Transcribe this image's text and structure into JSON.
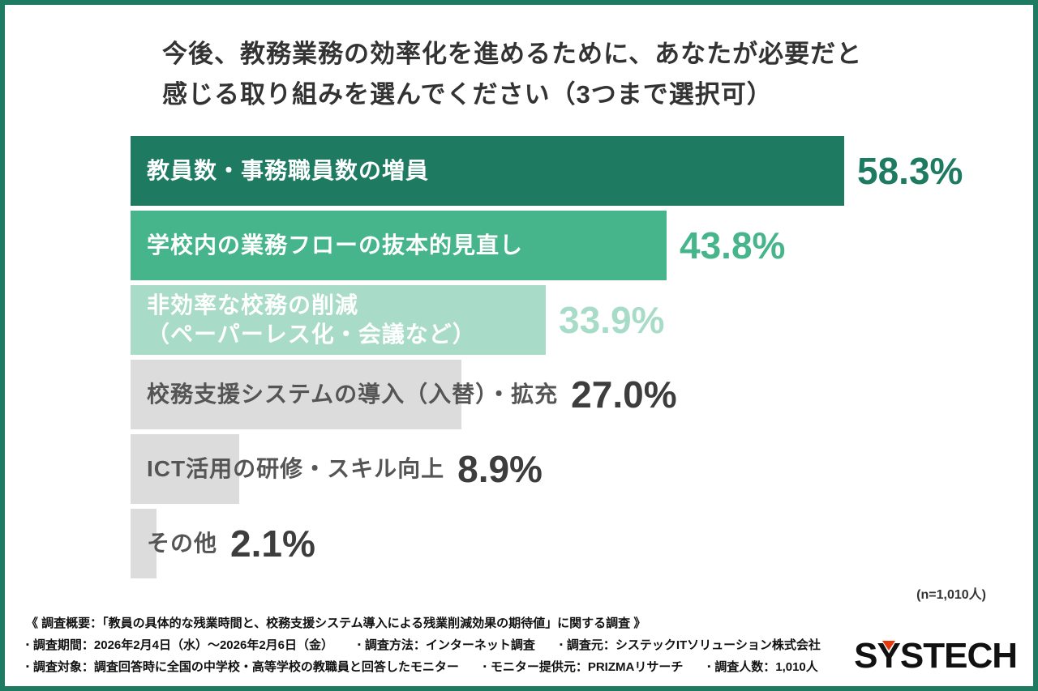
{
  "page": {
    "border_color": "#1E7B62",
    "background": "#FFFFFF"
  },
  "title": {
    "line1": "今後、教務業務の効率化を進めるために、あなたが必要だと",
    "line2": "感じる取り組みを選んでください（3つまで選択可）"
  },
  "chart_data": {
    "type": "bar",
    "orientation": "horizontal",
    "unit": "%",
    "max_value": 58.3,
    "categories": [
      "教員数・事務職員数の増員",
      "学校内の業務フローの抜本的見直し",
      "非効率な校務の削減（ペーパーレス化・会議など）",
      "校務支援システムの導入（入替）・拡充",
      "ICT活用の研修・スキル向上",
      "その他"
    ],
    "values": [
      58.3,
      43.8,
      33.9,
      27.0,
      8.9,
      2.1
    ],
    "sample_note": "(n=1,010人)",
    "bars": [
      {
        "label_lines": [
          "教員数・事務職員数の増員"
        ],
        "value": 58.3,
        "value_label": "58.3%",
        "bar_color": "#1E7B62",
        "label_color": "#FFFFFF",
        "value_color": "#1E7B62"
      },
      {
        "label_lines": [
          "学校内の業務フローの抜本的見直し"
        ],
        "value": 43.8,
        "value_label": "43.8%",
        "bar_color": "#46B58B",
        "label_color": "#FFFFFF",
        "value_color": "#46B58B"
      },
      {
        "label_lines": [
          "非効率な校務の削減",
          "（ペーパーレス化・会議など）"
        ],
        "value": 33.9,
        "value_label": "33.9%",
        "bar_color": "#A8DCC8",
        "label_color": "#FFFFFF",
        "value_color": "#A8DCC8"
      },
      {
        "label_lines": [
          "校務支援システムの導入（入替）・拡充"
        ],
        "value": 27.0,
        "value_label": "27.0%",
        "bar_color": "#DCDCDC",
        "label_color": "#555555",
        "value_color": "#3D3D3D"
      },
      {
        "label_lines": [
          "ICT活用の研修・スキル向上"
        ],
        "value": 8.9,
        "value_label": "8.9%",
        "bar_color": "#DCDCDC",
        "label_color": "#555555",
        "value_color": "#3D3D3D"
      },
      {
        "label_lines": [
          "その他"
        ],
        "value": 2.1,
        "value_label": "2.1%",
        "bar_color": "#DCDCDC",
        "label_color": "#555555",
        "value_color": "#3D3D3D"
      }
    ]
  },
  "footer": {
    "summary": "《 調査概要：「教員の具体的な残業時間と、校務支援システム導入による残業削減効果の期待値」に関する調査 》",
    "bullet": "▪",
    "line2_items": [
      "調査期間：2026年2月4日（水）〜2026年2月6日（金）",
      "調査方法：インターネット調査",
      "調査元：システックITソリューション株式会社"
    ],
    "line3_items": [
      "調査対象：調査回答時に全国の中学校・高等学校の教職員と回答したモニター",
      "モニター提供元：PRIZMAリサーチ",
      "調査人数：1,010人"
    ],
    "logo_text": "SYSTECH",
    "logo_accent_color": "#E8380D"
  }
}
